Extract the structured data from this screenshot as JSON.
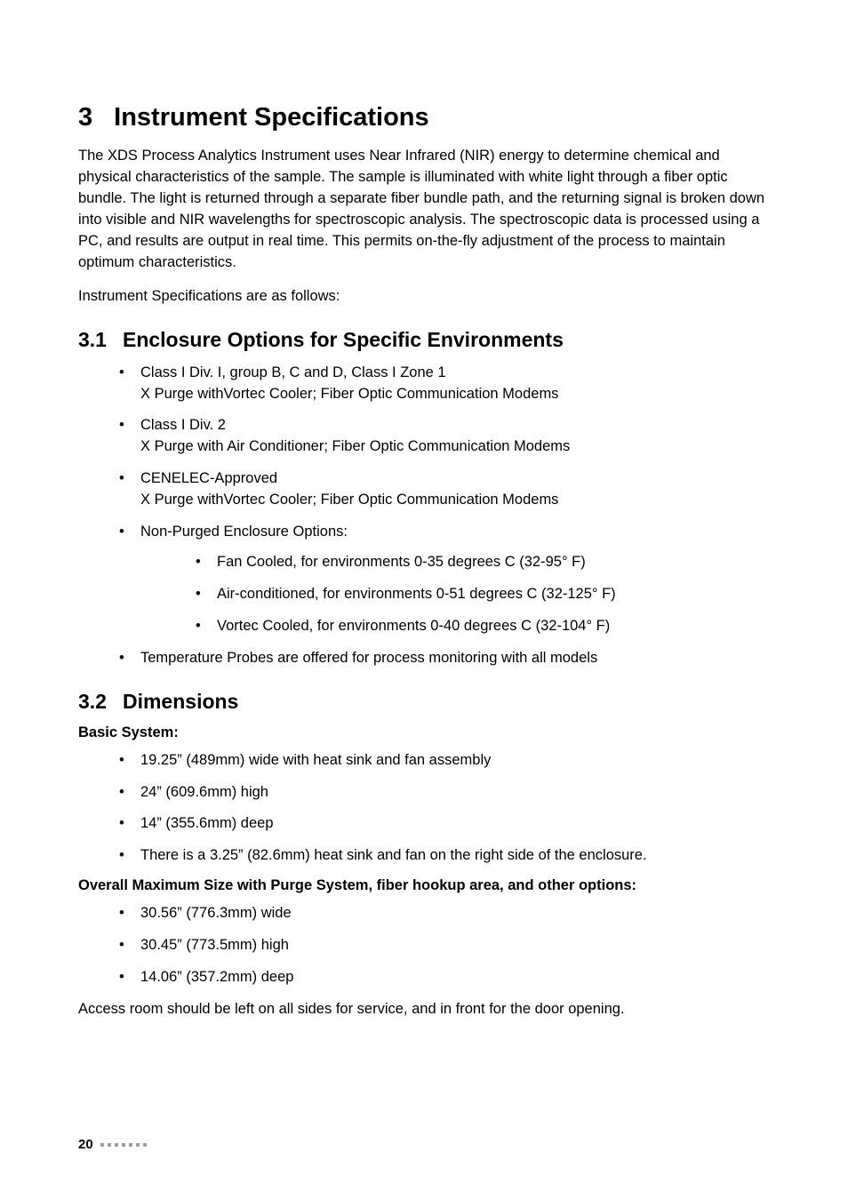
{
  "chapter": {
    "number": "3",
    "title": "Instrument Specifications"
  },
  "intro_p1": "The XDS Process Analytics Instrument uses Near Infrared (NIR) energy to determine chemical and physical characteristics of the sample. The sample is illuminated with white light through a fiber optic bundle. The light is returned through a separate fiber bundle path, and the returning signal is broken down into visible and NIR wavelengths for spectroscopic analysis. The spectroscopic data is processed using a PC, and results are output in real time. This permits on-the-fly adjustment of the process to maintain optimum characteristics.",
  "intro_p2": "Instrument Specifications are as follows:",
  "sec31": {
    "number": "3.1",
    "title": "Enclosure Options for Specific Environments",
    "items": [
      {
        "l1": "Class I Div. I, group B, C and D, Class I Zone 1",
        "l2": "X Purge withVortec Cooler; Fiber Optic Communication Modems"
      },
      {
        "l1": "Class I Div. 2",
        "l2": "X Purge with Air Conditioner; Fiber Optic Communication Modems"
      },
      {
        "l1": "CENELEC-Approved",
        "l2": "X Purge withVortec Cooler; Fiber Optic Communication Modems"
      },
      {
        "l1": "Non-Purged Enclosure Options:",
        "sub": [
          "Fan Cooled, for environments 0-35 degrees C (32-95° F)",
          "Air-conditioned, for environments 0-51 degrees C (32-125° F)",
          "Vortec Cooled, for environments 0-40 degrees C (32-104° F)"
        ]
      },
      {
        "l1": "Temperature Probes are offered for process monitoring with all models"
      }
    ]
  },
  "sec32": {
    "number": "3.2",
    "title": "Dimensions",
    "sub1_title": "Basic System:",
    "sub1_items": [
      "19.25” (489mm) wide with heat sink and fan assembly",
      "24” (609.6mm) high",
      "14” (355.6mm) deep",
      "There is a 3.25” (82.6mm) heat sink and fan on the right side of the enclosure."
    ],
    "sub2_title": "Overall Maximum Size with Purge System, fiber hookup area, and other options:",
    "sub2_items": [
      "30.56” (776.3mm) wide",
      "30.45” (773.5mm) high",
      "14.06” (357.2mm) deep"
    ],
    "closing": "Access room should be left on all sides for service, and in front for the door opening."
  },
  "page_number": "20",
  "colors": {
    "text": "#000000",
    "bg": "#ffffff",
    "dot": "#9aa0a6"
  }
}
